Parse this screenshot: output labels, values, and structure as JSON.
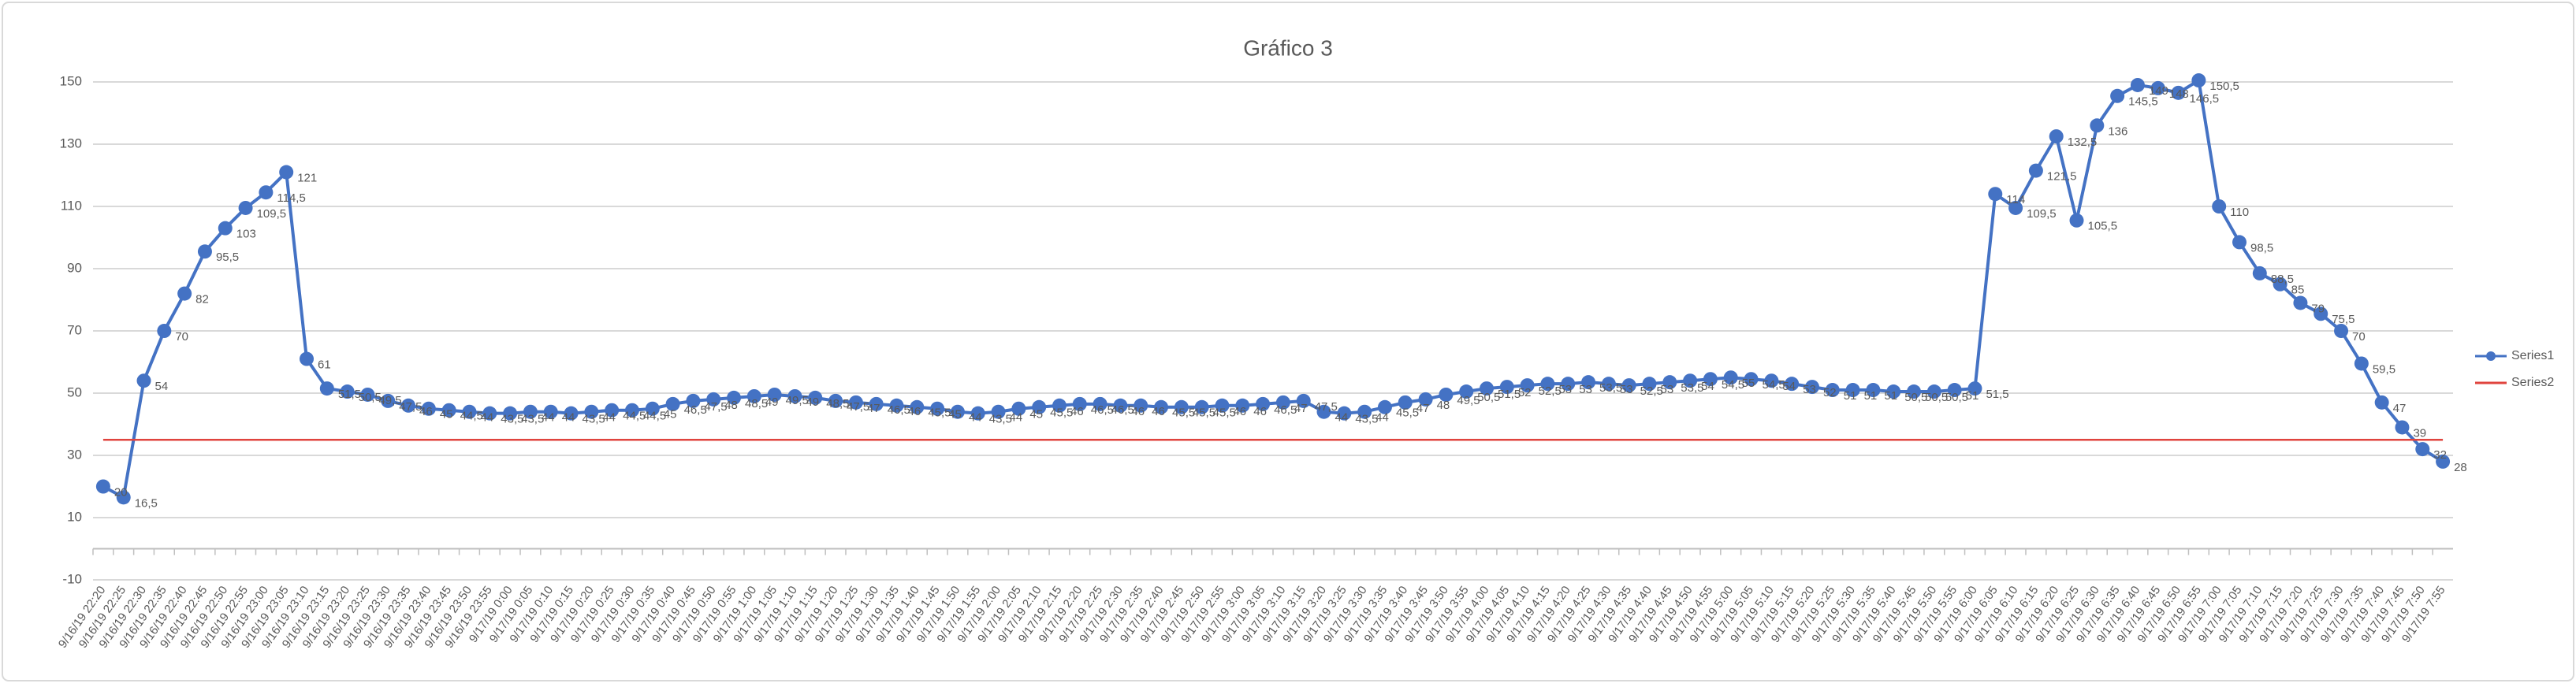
{
  "chart_data": {
    "type": "line",
    "title": "Gráfico 3",
    "categories": [
      "9/16/19 22:20",
      "9/16/19 22:25",
      "9/16/19 22:30",
      "9/16/19 22:35",
      "9/16/19 22:40",
      "9/16/19 22:45",
      "9/16/19 22:50",
      "9/16/19 22:55",
      "9/16/19 23:00",
      "9/16/19 23:05",
      "9/16/19 23:10",
      "9/16/19 23:15",
      "9/16/19 23:20",
      "9/16/19 23:25",
      "9/16/19 23:30",
      "9/16/19 23:35",
      "9/16/19 23:40",
      "9/16/19 23:45",
      "9/16/19 23:50",
      "9/16/19 23:55",
      "9/17/19 0:00",
      "9/17/19 0:05",
      "9/17/19 0:10",
      "9/17/19 0:15",
      "9/17/19 0:20",
      "9/17/19 0:25",
      "9/17/19 0:30",
      "9/17/19 0:35",
      "9/17/19 0:40",
      "9/17/19 0:45",
      "9/17/19 0:50",
      "9/17/19 0:55",
      "9/17/19 1:00",
      "9/17/19 1:05",
      "9/17/19 1:10",
      "9/17/19 1:15",
      "9/17/19 1:20",
      "9/17/19 1:25",
      "9/17/19 1:30",
      "9/17/19 1:35",
      "9/17/19 1:40",
      "9/17/19 1:45",
      "9/17/19 1:50",
      "9/17/19 1:55",
      "9/17/19 2:00",
      "9/17/19 2:05",
      "9/17/19 2:10",
      "9/17/19 2:15",
      "9/17/19 2:20",
      "9/17/19 2:25",
      "9/17/19 2:30",
      "9/17/19 2:35",
      "9/17/19 2:40",
      "9/17/19 2:45",
      "9/17/19 2:50",
      "9/17/19 2:55",
      "9/17/19 3:00",
      "9/17/19 3:05",
      "9/17/19 3:10",
      "9/17/19 3:15",
      "9/17/19 3:20",
      "9/17/19 3:25",
      "9/17/19 3:30",
      "9/17/19 3:35",
      "9/17/19 3:40",
      "9/17/19 3:45",
      "9/17/19 3:50",
      "9/17/19 3:55",
      "9/17/19 4:00",
      "9/17/19 4:05",
      "9/17/19 4:10",
      "9/17/19 4:15",
      "9/17/19 4:20",
      "9/17/19 4:25",
      "9/17/19 4:30",
      "9/17/19 4:35",
      "9/17/19 4:40",
      "9/17/19 4:45",
      "9/17/19 4:50",
      "9/17/19 4:55",
      "9/17/19 5:00",
      "9/17/19 5:05",
      "9/17/19 5:10",
      "9/17/19 5:15",
      "9/17/19 5:20",
      "9/17/19 5:25",
      "9/17/19 5:30",
      "9/17/19 5:35",
      "9/17/19 5:40",
      "9/17/19 5:45",
      "9/17/19 5:50",
      "9/17/19 5:55",
      "9/17/19 6:00",
      "9/17/19 6:05",
      "9/17/19 6:10",
      "9/17/19 6:15",
      "9/17/19 6:20",
      "9/17/19 6:25",
      "9/17/19 6:30",
      "9/17/19 6:35",
      "9/17/19 6:40",
      "9/17/19 6:45",
      "9/17/19 6:50",
      "9/17/19 6:55",
      "9/17/19 7:00",
      "9/17/19 7:05",
      "9/17/19 7:10",
      "9/17/19 7:15",
      "9/17/19 7:20",
      "9/17/19 7:25",
      "9/17/19 7:30",
      "9/17/19 7:35",
      "9/17/19 7:40",
      "9/17/19 7:45",
      "9/17/19 7:50",
      "9/17/19 7:55"
    ],
    "series": [
      {
        "name": "Series1",
        "color": "#4472c4",
        "markers": true,
        "values": [
          20,
          16.5,
          54,
          70,
          82,
          95.5,
          103,
          109.5,
          114.5,
          121,
          61,
          51.5,
          50.5,
          49.5,
          47.5,
          46,
          45,
          44.5,
          44,
          43.5,
          43.5,
          44,
          44,
          43.5,
          44,
          44.5,
          44.5,
          45,
          46.5,
          47.5,
          48,
          48.5,
          49,
          49.5,
          49,
          48.5,
          47.5,
          47,
          46.5,
          46,
          45.5,
          45,
          44,
          43.5,
          44,
          45,
          45.5,
          46,
          46.5,
          46.5,
          46,
          46,
          45.5,
          45.5,
          45.5,
          46,
          46,
          46.5,
          47,
          47.5,
          44,
          43.5,
          44,
          45.5,
          47,
          48,
          49.5,
          50.5,
          51.5,
          52,
          52.5,
          53,
          53,
          53.5,
          53,
          52.5,
          53,
          53.5,
          54,
          54.5,
          55,
          54.5,
          54,
          53,
          52,
          51,
          51,
          51,
          50.5,
          50.5,
          50.5,
          51,
          51.5,
          114,
          109.5,
          121.5,
          132.5,
          105.5,
          136,
          145.5,
          149,
          148,
          146.5,
          150.5,
          110,
          98.5,
          88.5,
          85,
          79,
          75.5,
          70,
          59.5,
          47,
          39,
          32,
          28
        ],
        "value_labels": [
          "20",
          "16,5",
          "54",
          "70",
          "82",
          "95,5",
          "103",
          "109,5",
          "114,5",
          "121",
          "61",
          "51,5",
          "50,5",
          "49,5",
          "47,5",
          "46",
          "45",
          "44,5",
          "44",
          "43,5",
          "43,5",
          "44",
          "44",
          "43,5",
          "44",
          "44,5",
          "44,5",
          "45",
          "46,5",
          "47,5",
          "48",
          "48,5",
          "49",
          "49,5",
          "49",
          "48,5",
          "47,5",
          "47",
          "46,5",
          "46",
          "45,5",
          "45",
          "44",
          "43,5",
          "44",
          "45",
          "45,5",
          "46",
          "46,5",
          "46,5",
          "46",
          "46",
          "45,5",
          "45,5",
          "45,5",
          "46",
          "46",
          "46,5",
          "47",
          "47,5",
          "44",
          "43,5",
          "44",
          "45,5",
          "47",
          "48",
          "49,5",
          "50,5",
          "51,5",
          "52",
          "52,5",
          "53",
          "53",
          "53,5",
          "53",
          "52,5",
          "53",
          "53,5",
          "54",
          "54,5",
          "55",
          "54,5",
          "54",
          "53",
          "52",
          "51",
          "51",
          "51",
          "50,5",
          "50,5",
          "50,5",
          "51",
          "51,5",
          "114",
          "109,5",
          "121,5",
          "132,5",
          "105,5",
          "136",
          "145,5",
          "149",
          "148",
          "146,5",
          "150,5",
          "110",
          "98,5",
          "88,5",
          "85",
          "79",
          "75,5",
          "70",
          "59,5",
          "47",
          "39",
          "32",
          "28"
        ]
      },
      {
        "name": "Series2",
        "color": "#e0443e",
        "markers": false,
        "values": [
          35,
          35,
          35,
          35,
          35,
          35,
          35,
          35,
          35,
          35,
          35,
          35,
          35,
          35,
          35,
          35,
          35,
          35,
          35,
          35,
          35,
          35,
          35,
          35,
          35,
          35,
          35,
          35,
          35,
          35,
          35,
          35,
          35,
          35,
          35,
          35,
          35,
          35,
          35,
          35,
          35,
          35,
          35,
          35,
          35,
          35,
          35,
          35,
          35,
          35,
          35,
          35,
          35,
          35,
          35,
          35,
          35,
          35,
          35,
          35,
          35,
          35,
          35,
          35,
          35,
          35,
          35,
          35,
          35,
          35,
          35,
          35,
          35,
          35,
          35,
          35,
          35,
          35,
          35,
          35,
          35,
          35,
          35,
          35,
          35,
          35,
          35,
          35,
          35,
          35,
          35,
          35,
          35,
          35,
          35,
          35,
          35,
          35,
          35,
          35,
          35,
          35,
          35,
          35,
          35,
          35,
          35,
          35,
          35,
          35,
          35,
          35,
          35,
          35,
          35,
          35
        ]
      }
    ],
    "ylim": [
      -10,
      152
    ],
    "yticks": [
      -10,
      10,
      30,
      50,
      70,
      90,
      110,
      130,
      150
    ],
    "grid": true,
    "legend": "right"
  }
}
